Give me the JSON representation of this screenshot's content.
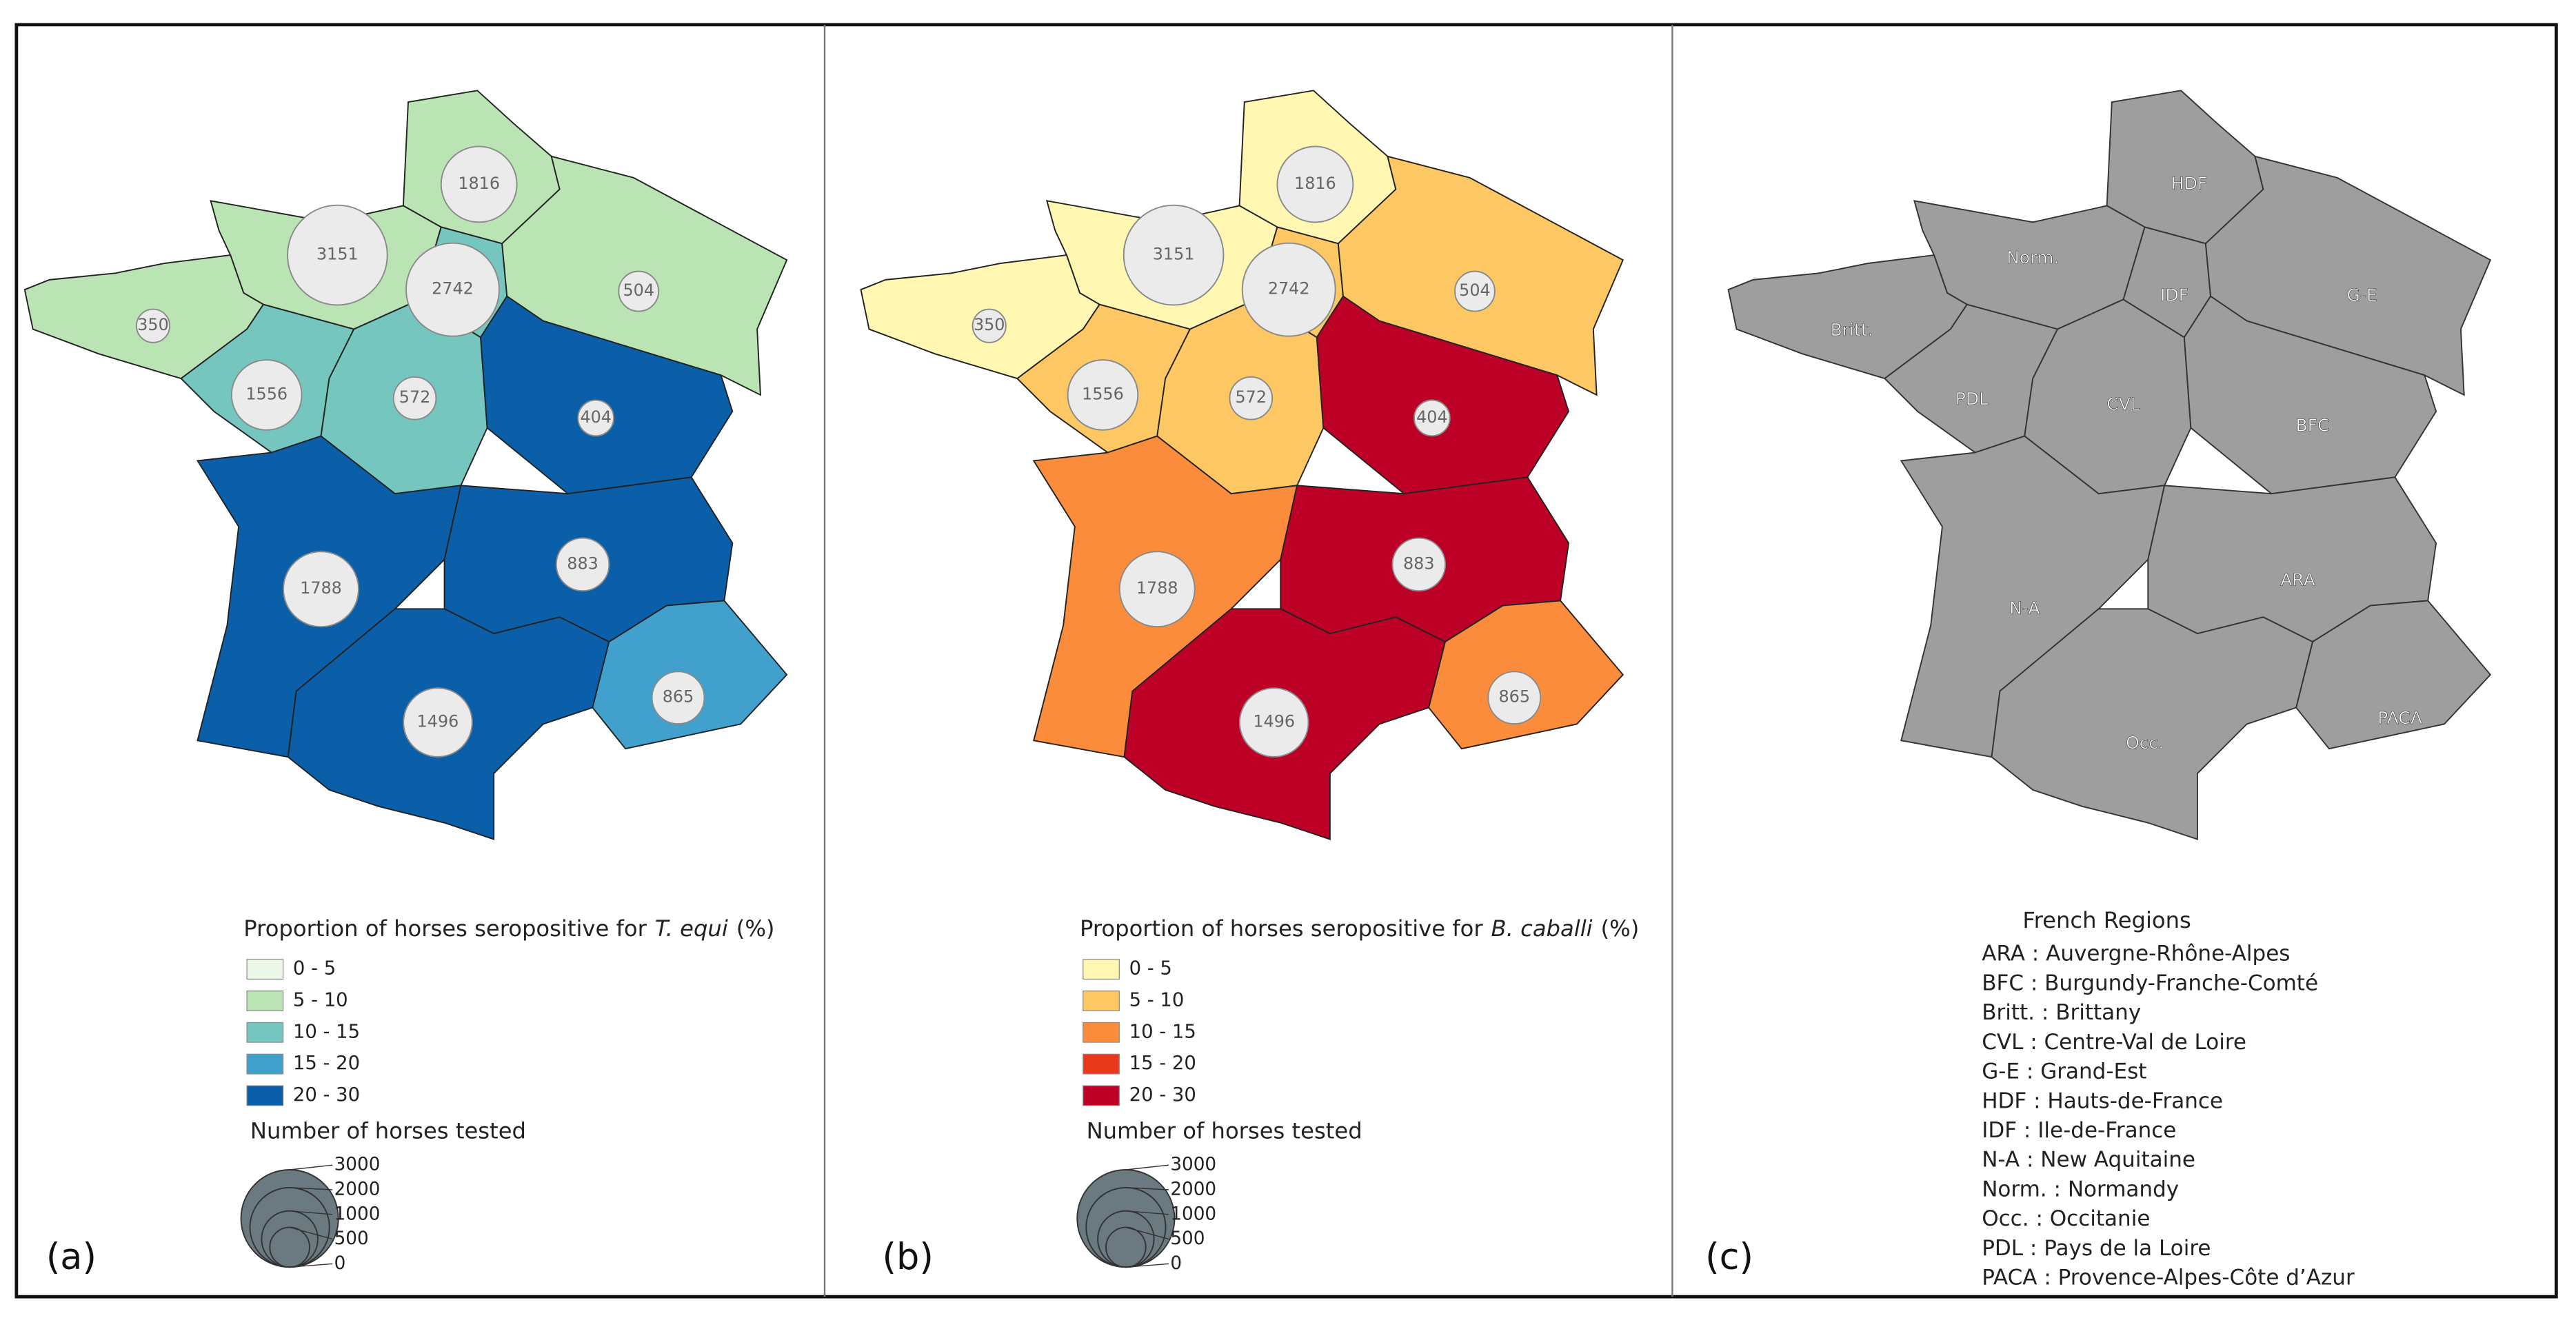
{
  "panels": [
    {
      "label": "(a)",
      "legend": {
        "title_before": "Proportion of horses seropositive for",
        "title_italic": "T. equi",
        "title_after": "(%)",
        "classes": [
          {
            "label": "0 - 5",
            "color": "#edf8e9"
          },
          {
            "label": "5 - 10",
            "color": "#bae4b3"
          },
          {
            "label": "10 - 15",
            "color": "#74c6be"
          },
          {
            "label": "15 - 20",
            "color": "#41a0cc"
          },
          {
            "label": "20 - 30",
            "color": "#0a5fa8"
          }
        ],
        "size_title": "Number of horses tested",
        "size_ticks": [
          3000,
          2000,
          1000,
          500,
          0
        ]
      },
      "regions": [
        {
          "tested": 1816,
          "color": "#bae4b3"
        },
        {
          "tested": 3151,
          "color": "#bae4b3"
        },
        {
          "tested": 350,
          "color": "#bae4b3"
        },
        {
          "tested": 2742,
          "color": "#74c6be"
        },
        {
          "tested": 504,
          "color": "#bae4b3"
        },
        {
          "tested": 1556,
          "color": "#74c6be"
        },
        {
          "tested": 572,
          "color": "#74c6be"
        },
        {
          "tested": 404,
          "color": "#0a5fa8"
        },
        {
          "tested": 1788,
          "color": "#0a5fa8"
        },
        {
          "tested": 883,
          "color": "#0a5fa8"
        },
        {
          "tested": 1496,
          "color": "#0a5fa8"
        },
        {
          "tested": 865,
          "color": "#41a0cc"
        }
      ]
    },
    {
      "label": "(b)",
      "legend": {
        "title_before": "Proportion of horses seropositive for",
        "title_italic": "B. caballi",
        "title_after": "(%)",
        "classes": [
          {
            "label": "0 - 5",
            "color": "#fff7b2"
          },
          {
            "label": "5 - 10",
            "color": "#fdc863"
          },
          {
            "label": "10 - 15",
            "color": "#fa8c3c"
          },
          {
            "label": "15 - 20",
            "color": "#e8391c"
          },
          {
            "label": "20 - 30",
            "color": "#bd0026"
          }
        ],
        "size_title": "Number of horses tested",
        "size_ticks": [
          3000,
          2000,
          1000,
          500,
          0
        ]
      },
      "regions": [
        {
          "tested": 1816,
          "color": "#fff7b2"
        },
        {
          "tested": 3151,
          "color": "#fff7b2"
        },
        {
          "tested": 350,
          "color": "#fff7b2"
        },
        {
          "tested": 2742,
          "color": "#fdc863"
        },
        {
          "tested": 504,
          "color": "#fdc863"
        },
        {
          "tested": 1556,
          "color": "#fdc863"
        },
        {
          "tested": 572,
          "color": "#fdc863"
        },
        {
          "tested": 404,
          "color": "#bd0026"
        },
        {
          "tested": 1788,
          "color": "#fa8c3c"
        },
        {
          "tested": 883,
          "color": "#bd0026"
        },
        {
          "tested": 1496,
          "color": "#bd0026"
        },
        {
          "tested": 865,
          "color": "#fa8c3c"
        }
      ]
    }
  ],
  "regions_panel": {
    "label": "(c)",
    "color": "#9e9e9e",
    "region_labels": [
      "HDF",
      "Norm.",
      "Britt.",
      "IDF",
      "G-E",
      "PDL",
      "CVL",
      "BFC",
      "N-A",
      "ARA",
      "Occ.",
      "PACA"
    ],
    "legend_title": "French Regions",
    "legend_entries": [
      "ARA : Auvergne-Rhône-Alpes",
      "BFC : Burgundy-Franche-Comté",
      "Britt. : Brittany",
      "CVL : Centre-Val de Loire",
      "G-E : Grand-Est",
      "HDF : Hauts-de-France",
      "IDF : Ile-de-France",
      "N-A : New Aquitaine",
      "Norm. : Normandy",
      "Occ. : Occitanie",
      "PDL : Pays de la Loire",
      "PACA : Provence-Alpes-Côte d’Azur"
    ]
  }
}
